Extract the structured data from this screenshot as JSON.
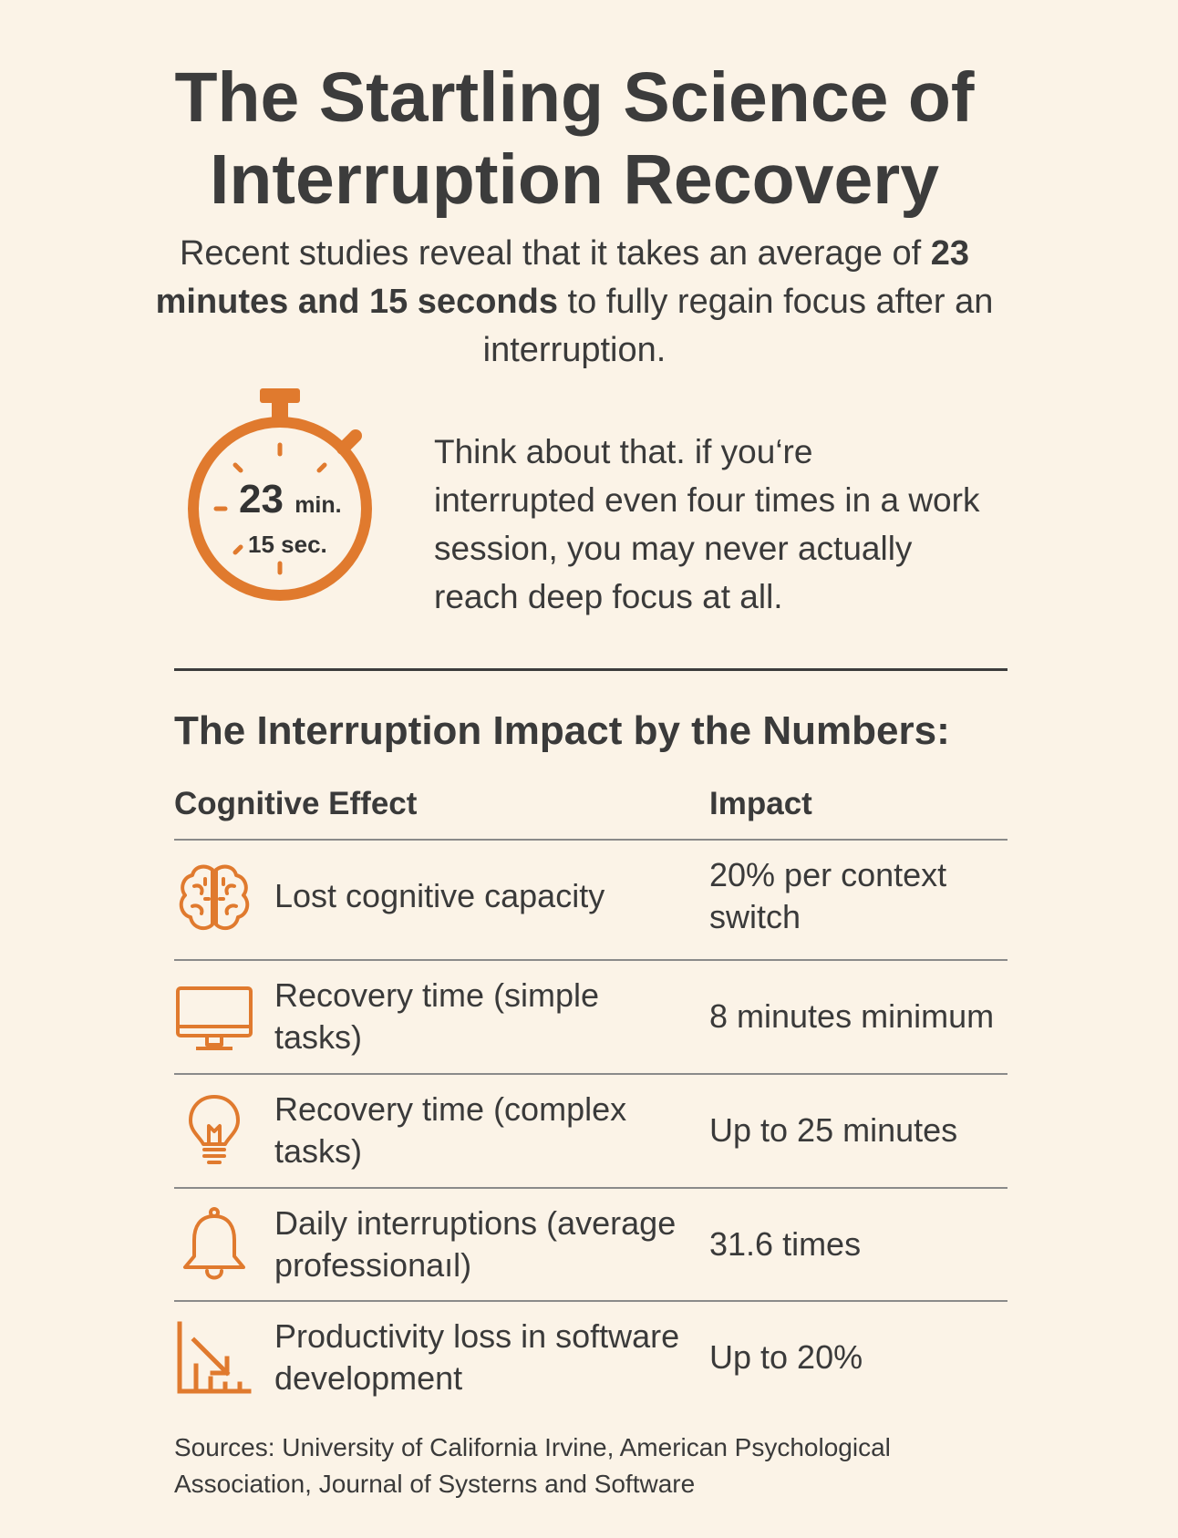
{
  "title": "The Startling Science of Interruption Recovery",
  "intro": {
    "before": "Recent studies reveal that it takes an average of",
    "bold": "23 minutes and 15 seconds",
    "after": "to fully regain focus after an interruption."
  },
  "timer": {
    "minutes": "23",
    "minutes_unit": "min.",
    "seconds": "15 sec."
  },
  "think_text": "Think about that. if you‘re interrupted even four times in a work session, you may never actually reach deep focus at all.",
  "table": {
    "heading": "The Interruption Impact by the Numbers:",
    "col_effect": "Cognitive Effect",
    "col_impact": "Impact",
    "rows": [
      {
        "icon": "brain-icon",
        "effect": "Lost cognitive capacity",
        "impact": "20% per context switch"
      },
      {
        "icon": "monitor-icon",
        "effect": "Recovery time (simple tasks)",
        "impact": "8 minutes minimum"
      },
      {
        "icon": "lightbulb-icon",
        "effect": "Recovery time (complex tasks)",
        "impact": "Up to 25 minutes"
      },
      {
        "icon": "bell-icon",
        "effect": "Daily interruptions (average professionaıl)",
        "impact": "31.6 times"
      },
      {
        "icon": "declining-chart-icon",
        "effect": "Productivity loss in software development",
        "impact": "Up to 20%"
      }
    ]
  },
  "sources": "Sources: University of California Irvine, American Psychological Association, Journal of Systerns and Software",
  "colors": {
    "background": "#fbf3e7",
    "accent": "#e07a2e",
    "text": "#3a3a3a"
  }
}
